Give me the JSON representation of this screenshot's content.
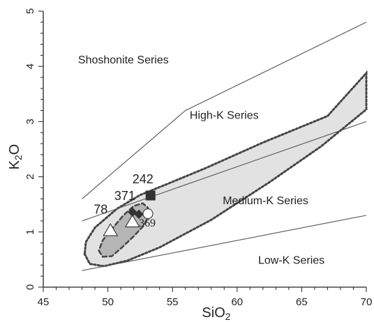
{
  "chart_data": {
    "type": "scatter",
    "title": "",
    "xlabel": "SiO",
    "xlabel_sub": "2",
    "ylabel": "K",
    "ylabel_sub": "2",
    "ylabel_tail": "O",
    "xlim": [
      45,
      70
    ],
    "ylim": [
      0,
      5
    ],
    "xticks": [
      "45",
      "50",
      "55",
      "60",
      "65",
      "70"
    ],
    "yticks": [
      "0",
      "1",
      "2",
      "3",
      "4",
      "5"
    ],
    "grid": false,
    "colors": {
      "axis": "#222222",
      "boundary": "#555555",
      "outer_field_fill": "#e2e2e2",
      "inner_field_fill": "#b5b5b5",
      "field_outline": "#444444",
      "marker_fill_dark": "#333333",
      "marker_fill_light": "#ffffff"
    },
    "series_regions": [
      {
        "label": "Shoshonite Series",
        "x": 51.2,
        "y": 4.05
      },
      {
        "label": "High-K Series",
        "x": 59.0,
        "y": 3.05
      },
      {
        "label": "Medium-K Series",
        "x": 62.2,
        "y": 1.5
      },
      {
        "label": "Low-K Series",
        "x": 64.2,
        "y": 0.42
      }
    ],
    "boundary_lines": [
      {
        "points": [
          [
            48,
            0.3
          ],
          [
            70,
            1.3
          ]
        ]
      },
      {
        "points": [
          [
            48,
            1.2
          ],
          [
            70,
            3.0
          ]
        ]
      },
      {
        "points": [
          [
            48,
            1.6
          ],
          [
            56,
            3.2
          ],
          [
            70,
            4.8
          ]
        ]
      }
    ],
    "fields": [
      {
        "style": "outer",
        "points": [
          [
            48.2,
            0.6
          ],
          [
            48.6,
            0.42
          ],
          [
            49.7,
            0.38
          ],
          [
            51.5,
            0.48
          ],
          [
            54.0,
            0.72
          ],
          [
            58.0,
            1.22
          ],
          [
            62.5,
            1.9
          ],
          [
            66.5,
            2.55
          ],
          [
            70,
            3.22
          ],
          [
            70,
            3.88
          ],
          [
            67.0,
            3.1
          ],
          [
            62.0,
            2.62
          ],
          [
            57.5,
            2.15
          ],
          [
            54.5,
            1.86
          ],
          [
            52.5,
            1.67
          ],
          [
            50.7,
            1.42
          ],
          [
            49.0,
            1.08
          ],
          [
            48.3,
            0.82
          ]
        ]
      },
      {
        "style": "inner",
        "points": [
          [
            49.3,
            0.66
          ],
          [
            49.6,
            0.55
          ],
          [
            50.3,
            0.56
          ],
          [
            51.0,
            0.7
          ],
          [
            52.0,
            0.92
          ],
          [
            52.8,
            1.12
          ],
          [
            53.2,
            1.3
          ],
          [
            53.1,
            1.44
          ],
          [
            52.7,
            1.52
          ],
          [
            52.0,
            1.47
          ],
          [
            51.2,
            1.3
          ],
          [
            50.3,
            1.05
          ],
          [
            49.6,
            0.85
          ]
        ]
      }
    ],
    "points": [
      {
        "marker": "triangle-open",
        "x": 50.2,
        "y": 1.02
      },
      {
        "marker": "triangle-open",
        "x": 51.9,
        "y": 1.18
      },
      {
        "marker": "diamond-filled",
        "x": 51.9,
        "y": 1.36
      },
      {
        "marker": "diamond-filled",
        "x": 52.4,
        "y": 1.32
      },
      {
        "marker": "circle-open",
        "x": 53.1,
        "y": 1.33
      },
      {
        "marker": "square-filled",
        "x": 53.3,
        "y": 1.66
      }
    ],
    "sample_labels": [
      {
        "text": "242",
        "x": 51.9,
        "y": 1.88,
        "style": "sans"
      },
      {
        "text": "371",
        "x": 50.5,
        "y": 1.58,
        "style": "sans"
      },
      {
        "text": "78",
        "x": 48.9,
        "y": 1.33,
        "style": "sans"
      },
      {
        "text": "369",
        "x": 52.4,
        "y": 1.1,
        "style": "serif"
      }
    ]
  }
}
